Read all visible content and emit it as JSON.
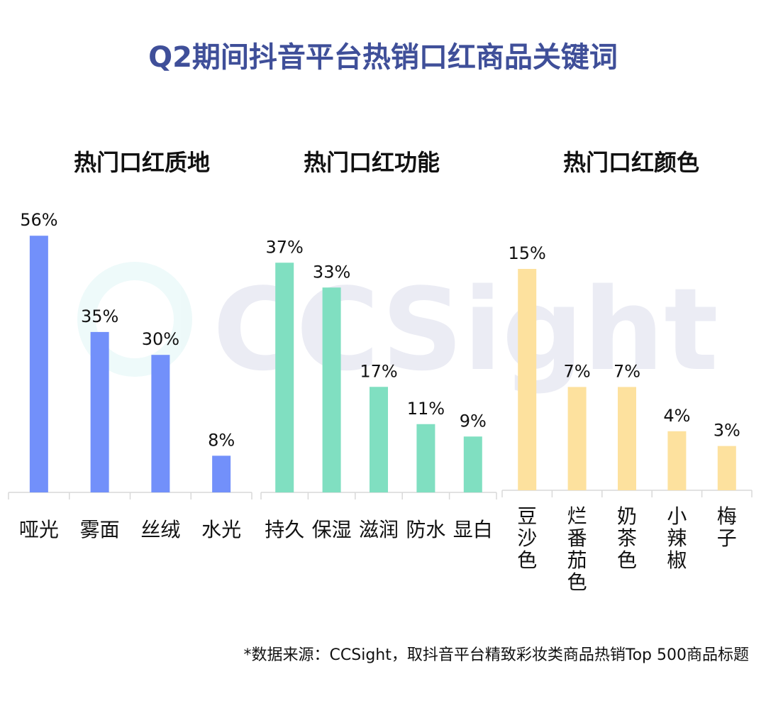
{
  "title": "Q2期间抖音平台热销口红商品关键词",
  "watermark": "CCSight",
  "source": "*数据来源：CCSight，取抖音平台精致彩妆类商品热销Top 500商品标题",
  "chart_data": [
    {
      "type": "bar",
      "title": "热门口红质地",
      "categories": [
        "哑光",
        "雾面",
        "丝绒",
        "水光"
      ],
      "values": [
        56,
        35,
        30,
        8
      ],
      "value_labels": [
        "56%",
        "35%",
        "30%",
        "8%"
      ],
      "unit": "%",
      "color": "#7290fa",
      "label_orientation": "horizontal"
    },
    {
      "type": "bar",
      "title": "热门口红功能",
      "categories": [
        "持久",
        "保湿",
        "滋润",
        "防水",
        "显白"
      ],
      "values": [
        37,
        33,
        17,
        11,
        9
      ],
      "value_labels": [
        "37%",
        "33%",
        "17%",
        "11%",
        "9%"
      ],
      "unit": "%",
      "color": "#80dfc1",
      "label_orientation": "horizontal"
    },
    {
      "type": "bar",
      "title": "热门口红颜色",
      "categories": [
        "豆沙色",
        "烂番茄色",
        "奶茶色",
        "小辣椒",
        "梅子"
      ],
      "values": [
        15,
        7,
        7,
        4,
        3
      ],
      "value_labels": [
        "15%",
        "7%",
        "7%",
        "4%",
        "3%"
      ],
      "unit": "%",
      "color": "#fde19e",
      "label_orientation": "vertical"
    }
  ]
}
